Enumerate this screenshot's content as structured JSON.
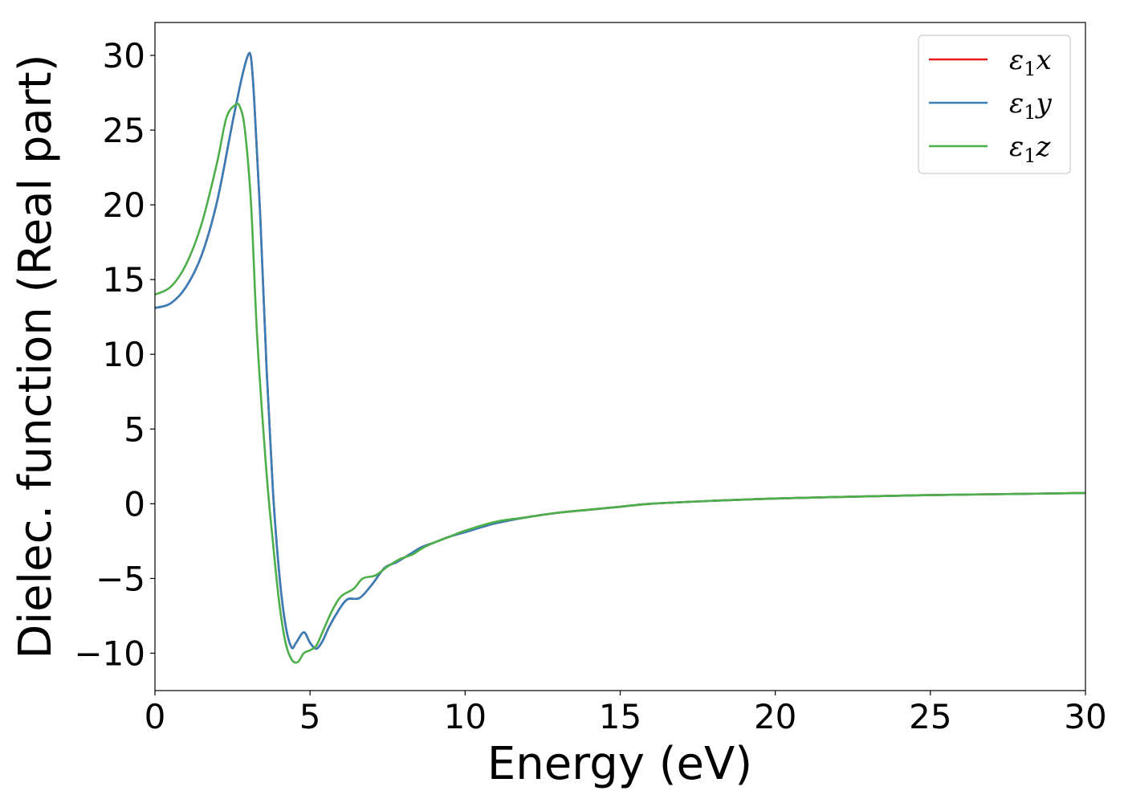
{
  "chart_data": {
    "type": "line",
    "xlabel": "Energy (eV)",
    "ylabel": "Dielec. function (Real part)",
    "xlim": [
      0,
      30
    ],
    "ylim": [
      -12.5,
      32.2
    ],
    "xticks": [
      0,
      5,
      10,
      15,
      20,
      25,
      30
    ],
    "xtick_labels": [
      "0",
      "5",
      "10",
      "15",
      "20",
      "25",
      "30"
    ],
    "yticks": [
      -10,
      -5,
      0,
      5,
      10,
      15,
      20,
      25,
      30
    ],
    "ytick_labels": [
      "−10",
      "−5",
      "0",
      "5",
      "10",
      "15",
      "20",
      "25",
      "30"
    ],
    "grid": false,
    "legend_position": "top-right",
    "series": [
      {
        "name": "ε₁x",
        "legend": {
          "symbol": "ε",
          "subscript": "1",
          "suffix": "x"
        },
        "color": "#e41a1c",
        "x": [
          0,
          0.5,
          1.0,
          1.5,
          2.0,
          2.5,
          2.8,
          3.0,
          3.1,
          3.2,
          3.4,
          3.6,
          3.8,
          4.0,
          4.2,
          4.4,
          4.55,
          4.8,
          5.0,
          5.2,
          5.4,
          5.6,
          5.9,
          6.2,
          6.6,
          7.0,
          7.4,
          7.8,
          8.2,
          8.6,
          9.0,
          9.5,
          10.0,
          11.0,
          12.0,
          13.0,
          14.0,
          15.0,
          16.0,
          18.0,
          20.0,
          22.0,
          25.0,
          27.5,
          30.0
        ],
        "y": [
          13.1,
          13.4,
          14.5,
          16.6,
          20.2,
          25.5,
          28.5,
          30.0,
          29.8,
          27.0,
          19.0,
          9.0,
          1.0,
          -4.5,
          -8.0,
          -9.6,
          -9.3,
          -8.6,
          -9.3,
          -9.7,
          -9.2,
          -8.3,
          -7.2,
          -6.4,
          -6.3,
          -5.4,
          -4.3,
          -3.9,
          -3.4,
          -2.9,
          -2.6,
          -2.2,
          -1.9,
          -1.3,
          -0.9,
          -0.6,
          -0.4,
          -0.2,
          0.0,
          0.2,
          0.35,
          0.45,
          0.58,
          0.65,
          0.72
        ]
      },
      {
        "name": "ε₁y",
        "legend": {
          "symbol": "ε",
          "subscript": "1",
          "suffix": "y"
        },
        "color": "#377eb8",
        "x": [
          0,
          0.5,
          1.0,
          1.5,
          2.0,
          2.5,
          2.8,
          3.0,
          3.1,
          3.2,
          3.4,
          3.6,
          3.8,
          4.0,
          4.2,
          4.4,
          4.55,
          4.8,
          5.0,
          5.2,
          5.4,
          5.6,
          5.9,
          6.2,
          6.6,
          7.0,
          7.4,
          7.8,
          8.2,
          8.6,
          9.0,
          9.5,
          10.0,
          11.0,
          12.0,
          13.0,
          14.0,
          15.0,
          16.0,
          18.0,
          20.0,
          22.0,
          25.0,
          27.5,
          30.0
        ],
        "y": [
          13.1,
          13.4,
          14.5,
          16.6,
          20.2,
          25.5,
          28.5,
          30.0,
          29.8,
          27.0,
          19.0,
          9.0,
          1.0,
          -4.5,
          -8.0,
          -9.6,
          -9.3,
          -8.6,
          -9.3,
          -9.7,
          -9.2,
          -8.3,
          -7.2,
          -6.4,
          -6.3,
          -5.4,
          -4.3,
          -3.9,
          -3.4,
          -2.9,
          -2.6,
          -2.2,
          -1.9,
          -1.3,
          -0.9,
          -0.6,
          -0.4,
          -0.2,
          0.0,
          0.2,
          0.35,
          0.45,
          0.58,
          0.65,
          0.72
        ]
      },
      {
        "name": "ε₁z",
        "legend": {
          "symbol": "ε",
          "subscript": "1",
          "suffix": "z"
        },
        "color": "#4daf4a",
        "x": [
          0,
          0.5,
          1.0,
          1.5,
          2.0,
          2.3,
          2.6,
          2.75,
          2.9,
          3.1,
          3.3,
          3.6,
          3.8,
          4.0,
          4.2,
          4.4,
          4.6,
          4.8,
          5.0,
          5.2,
          5.4,
          5.7,
          6.0,
          6.4,
          6.7,
          7.1,
          7.5,
          7.9,
          8.3,
          8.6,
          9.0,
          9.5,
          10.0,
          11.0,
          12.0,
          13.0,
          14.0,
          15.0,
          16.0,
          18.0,
          20.0,
          22.0,
          25.0,
          27.5,
          30.0
        ],
        "y": [
          14.0,
          14.5,
          16.0,
          18.7,
          22.8,
          25.8,
          26.7,
          26.5,
          25.0,
          20.0,
          11.0,
          2.0,
          -2.5,
          -6.5,
          -9.2,
          -10.4,
          -10.6,
          -10.0,
          -9.8,
          -9.5,
          -8.6,
          -7.2,
          -6.2,
          -5.7,
          -5.0,
          -4.8,
          -4.2,
          -3.7,
          -3.4,
          -3.0,
          -2.6,
          -2.2,
          -1.8,
          -1.2,
          -0.9,
          -0.6,
          -0.4,
          -0.2,
          0.0,
          0.2,
          0.35,
          0.45,
          0.58,
          0.65,
          0.72
        ]
      }
    ]
  }
}
